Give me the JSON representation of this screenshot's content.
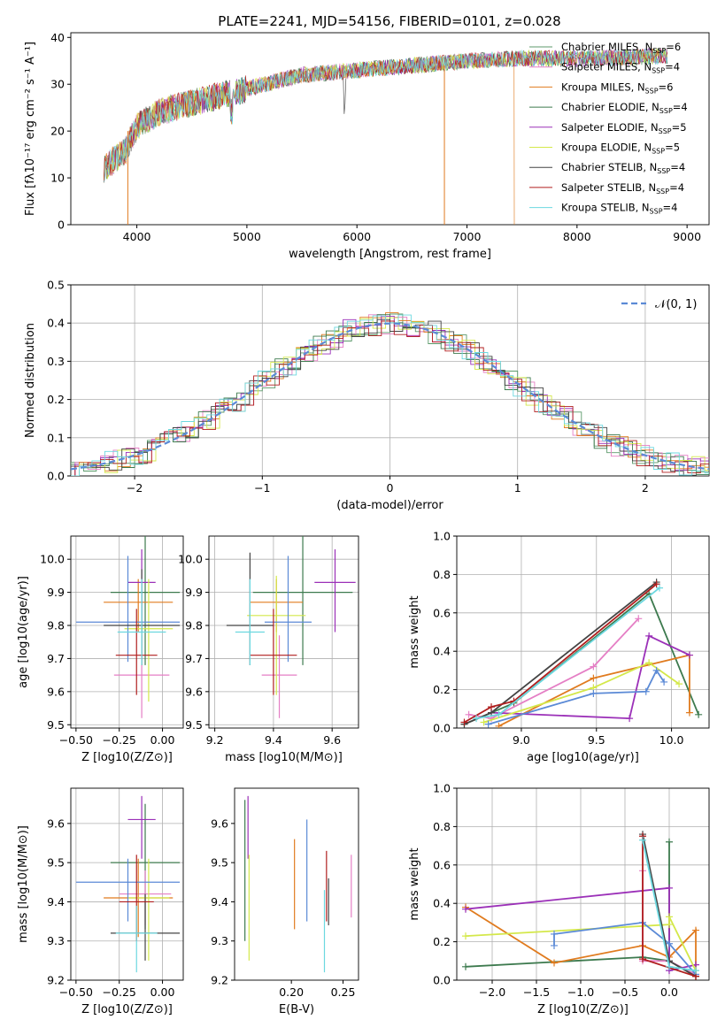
{
  "figure_title": "PLATE=2241, MJD=54156, FIBERID=0101, z=0.028",
  "chart_data": [
    {
      "type": "line",
      "id": "spectrum",
      "xlabel": "wavelength [Angstrom, rest frame]",
      "ylabel": "Flux [fλ10⁻¹⁷ erg cm⁻² s⁻¹ A⁻¹]",
      "xlim": [
        3400,
        9200
      ],
      "ylim": [
        0,
        41
      ],
      "xticks": [
        4000,
        5000,
        6000,
        7000,
        8000,
        9000
      ],
      "yticks": [
        0,
        10,
        20,
        30,
        40
      ],
      "grid": false,
      "legend_position": "right",
      "series": [
        {
          "name": "Chabrier MILES, N",
          "sub": "SSP",
          "suffix": "=6",
          "color": "#5c9a6b"
        },
        {
          "name": "Salpeter MILES, N",
          "sub": "SSP",
          "suffix": "=4",
          "color": "#e57fc5"
        },
        {
          "name": "Kroupa MILES, N",
          "sub": "SSP",
          "suffix": "=6",
          "color": "#e07b1f"
        },
        {
          "name": "Chabrier ELODIE, N",
          "sub": "SSP",
          "suffix": "=4",
          "color": "#3d7a4e"
        },
        {
          "name": "Salpeter ELODIE, N",
          "sub": "SSP",
          "suffix": "=5",
          "color": "#9b30b8"
        },
        {
          "name": "Kroupa ELODIE, N",
          "sub": "SSP",
          "suffix": "=5",
          "color": "#d4e84a"
        },
        {
          "name": "Chabrier STELIB, N",
          "sub": "SSP",
          "suffix": "=4",
          "color": "#444444"
        },
        {
          "name": "Salpeter STELIB, N",
          "sub": "SSP",
          "suffix": "=4",
          "color": "#b01e1e"
        },
        {
          "name": "Kroupa STELIB, N",
          "sub": "SSP",
          "suffix": "=4",
          "color": "#6cd8e0"
        }
      ],
      "continuum": {
        "x": [
          3700,
          3900,
          4000,
          4200,
          4500,
          5000,
          5500,
          6000,
          6500,
          7000,
          7500,
          8000,
          8500,
          8800
        ],
        "y": [
          12,
          16,
          21,
          24,
          26,
          29,
          32,
          33,
          34,
          35,
          35.5,
          35.5,
          35.8,
          36
        ]
      }
    },
    {
      "type": "histogram",
      "id": "residuals",
      "xlabel": "(data-model)/error",
      "ylabel": "Normed distribution",
      "xlim": [
        -2.5,
        2.5
      ],
      "ylim": [
        0,
        0.5
      ],
      "xticks": [
        -2,
        -1,
        0,
        1,
        2
      ],
      "yticks": [
        0.0,
        0.1,
        0.2,
        0.3,
        0.4,
        0.5
      ],
      "grid": true,
      "legend_position": "upper right",
      "legend_label": "𝒩(0, 1)",
      "normal_curve_color": "#5b8ad6"
    },
    {
      "type": "scatter",
      "id": "age_vs_Z",
      "xlabel": "Z [log10(Z/Z⊙)]",
      "ylabel": "age  [log10(age/yr)]",
      "xlim": [
        -0.53,
        0.12
      ],
      "ylim": [
        9.49,
        10.07
      ],
      "xticks": [
        -0.5,
        -0.25,
        0.0
      ],
      "yticks": [
        9.5,
        9.6,
        9.7,
        9.8,
        9.9,
        10.0
      ],
      "grid": true,
      "points": [
        {
          "x": -0.1,
          "y": 9.9,
          "xerr": 0.2,
          "yerr": [
            0.22,
            0.17
          ],
          "c": "#3d7a4e"
        },
        {
          "x": -0.12,
          "y": 9.65,
          "xerr": 0.16,
          "yerr": [
            0.13,
            0.12
          ],
          "c": "#e57fc5"
        },
        {
          "x": -0.14,
          "y": 9.87,
          "xerr": 0.2,
          "yerr": [
            0.09,
            0.07
          ],
          "c": "#e07b1f"
        },
        {
          "x": -0.12,
          "y": 9.93,
          "xerr": 0.08,
          "yerr": [
            0.15,
            0.1
          ],
          "c": "#9b30b8"
        },
        {
          "x": -0.08,
          "y": 9.79,
          "xerr": 0.14,
          "yerr": [
            0.22,
            0.15
          ],
          "c": "#d4e84a"
        },
        {
          "x": -0.2,
          "y": 9.81,
          "xerr": 0.3,
          "yerr": [
            0.12,
            0.2
          ],
          "c": "#5b8ad6"
        },
        {
          "x": -0.12,
          "y": 9.8,
          "xerr": 0.22,
          "yerr": [
            0.12,
            0.17
          ],
          "c": "#444444"
        },
        {
          "x": -0.15,
          "y": 9.71,
          "xerr": 0.12,
          "yerr": [
            0.12,
            0.14
          ],
          "c": "#b01e1e"
        },
        {
          "x": -0.12,
          "y": 9.78,
          "xerr": 0.14,
          "yerr": [
            0.1,
            0.16
          ],
          "c": "#6cd8e0"
        }
      ]
    },
    {
      "type": "scatter",
      "id": "age_vs_mass",
      "xlabel": "mass [log10(M/M⊙)]",
      "ylabel": "",
      "xlim": [
        9.18,
        9.69
      ],
      "ylim": [
        9.49,
        10.07
      ],
      "xticks": [
        9.2,
        9.4,
        9.6
      ],
      "yticks": [
        9.5,
        9.6,
        9.7,
        9.8,
        9.9,
        10.0
      ],
      "grid": true,
      "points": [
        {
          "x": 9.5,
          "y": 9.9,
          "xerr": 0.17,
          "yerr": [
            0.22,
            0.17
          ],
          "c": "#3d7a4e"
        },
        {
          "x": 9.42,
          "y": 9.65,
          "xerr": 0.06,
          "yerr": [
            0.13,
            0.12
          ],
          "c": "#e57fc5"
        },
        {
          "x": 9.41,
          "y": 9.87,
          "xerr": 0.09,
          "yerr": [
            0.09,
            0.07
          ],
          "c": "#e07b1f"
        },
        {
          "x": 9.61,
          "y": 9.93,
          "xerr": 0.07,
          "yerr": [
            0.15,
            0.1
          ],
          "c": "#9b30b8"
        },
        {
          "x": 9.41,
          "y": 9.83,
          "xerr": 0.1,
          "yerr": [
            0.24,
            0.12
          ],
          "c": "#d4e84a"
        },
        {
          "x": 9.45,
          "y": 9.81,
          "xerr": 0.08,
          "yerr": [
            0.12,
            0.2
          ],
          "c": "#5b8ad6"
        },
        {
          "x": 9.32,
          "y": 9.8,
          "xerr": 0.08,
          "yerr": [
            0.12,
            0.22
          ],
          "c": "#444444"
        },
        {
          "x": 9.4,
          "y": 9.71,
          "xerr": 0.08,
          "yerr": [
            0.12,
            0.14
          ],
          "c": "#b01e1e"
        },
        {
          "x": 9.32,
          "y": 9.78,
          "xerr": 0.05,
          "yerr": [
            0.1,
            0.16
          ],
          "c": "#6cd8e0"
        }
      ]
    },
    {
      "type": "line",
      "id": "mass_weight_vs_age",
      "xlabel": "age  [log10(age/yr)]",
      "ylabel": "mass weight",
      "xlim": [
        8.57,
        10.25
      ],
      "ylim": [
        0,
        1
      ],
      "xticks": [
        9.0,
        9.5,
        10.0
      ],
      "yticks": [
        0.0,
        0.2,
        0.4,
        0.6,
        0.8,
        1.0
      ],
      "grid": true,
      "series": [
        {
          "c": "#3d7a4e",
          "pts": [
            [
              8.62,
              0.02
            ],
            [
              8.95,
              0.13
            ],
            [
              9.85,
              0.7
            ],
            [
              10.18,
              0.07
            ]
          ]
        },
        {
          "c": "#e57fc5",
          "pts": [
            [
              8.65,
              0.07
            ],
            [
              8.8,
              0.05
            ],
            [
              9.48,
              0.32
            ],
            [
              9.78,
              0.57
            ]
          ]
        },
        {
          "c": "#e07b1f",
          "pts": [
            [
              8.85,
              0.01
            ],
            [
              9.48,
              0.26
            ],
            [
              10.12,
              0.38
            ],
            [
              10.12,
              0.08
            ]
          ]
        },
        {
          "c": "#9b30b8",
          "pts": [
            [
              8.8,
              0.08
            ],
            [
              9.72,
              0.05
            ],
            [
              9.85,
              0.48
            ],
            [
              10.12,
              0.38
            ]
          ]
        },
        {
          "c": "#d4e84a",
          "pts": [
            [
              8.75,
              0.03
            ],
            [
              9.48,
              0.21
            ],
            [
              9.85,
              0.34
            ],
            [
              10.05,
              0.23
            ]
          ]
        },
        {
          "c": "#5b8ad6",
          "pts": [
            [
              8.78,
              0.02
            ],
            [
              9.48,
              0.18
            ],
            [
              9.83,
              0.19
            ],
            [
              9.9,
              0.3
            ],
            [
              9.95,
              0.24
            ]
          ]
        },
        {
          "c": "#444444",
          "pts": [
            [
              8.62,
              0.02
            ],
            [
              8.8,
              0.08
            ],
            [
              9.9,
              0.76
            ]
          ]
        },
        {
          "c": "#b01e1e",
          "pts": [
            [
              8.62,
              0.03
            ],
            [
              8.8,
              0.11
            ],
            [
              8.95,
              0.14
            ],
            [
              9.9,
              0.75
            ]
          ]
        },
        {
          "c": "#6cd8e0",
          "pts": [
            [
              8.7,
              0.05
            ],
            [
              8.85,
              0.07
            ],
            [
              9.92,
              0.73
            ]
          ]
        }
      ]
    },
    {
      "type": "scatter",
      "id": "mass_vs_Z",
      "xlabel": "Z [log10(Z/Z⊙)]",
      "ylabel": "mass [log10(M/M⊙)]",
      "xlim": [
        -0.53,
        0.12
      ],
      "ylim": [
        9.2,
        9.69
      ],
      "xticks": [
        -0.5,
        -0.25,
        0.0
      ],
      "yticks": [
        9.2,
        9.3,
        9.4,
        9.5,
        9.6
      ],
      "grid": true,
      "points": [
        {
          "x": -0.1,
          "y": 9.5,
          "xerr": 0.2,
          "yerr": [
            0.17,
            0.15
          ],
          "c": "#3d7a4e"
        },
        {
          "x": -0.1,
          "y": 9.42,
          "xerr": 0.15,
          "yerr": [
            0.08,
            0.06
          ],
          "c": "#e57fc5"
        },
        {
          "x": -0.14,
          "y": 9.41,
          "xerr": 0.2,
          "yerr": [
            0.1,
            0.1
          ],
          "c": "#e07b1f"
        },
        {
          "x": -0.12,
          "y": 9.61,
          "xerr": 0.08,
          "yerr": [
            0.1,
            0.06
          ],
          "c": "#9b30b8"
        },
        {
          "x": -0.08,
          "y": 9.41,
          "xerr": 0.12,
          "yerr": [
            0.16,
            0.1
          ],
          "c": "#d4e84a"
        },
        {
          "x": -0.2,
          "y": 9.45,
          "xerr": 0.3,
          "yerr": [
            0.1,
            0.06
          ],
          "c": "#5b8ad6"
        },
        {
          "x": -0.1,
          "y": 9.32,
          "xerr": 0.2,
          "yerr": [
            0.07,
            0.1
          ],
          "c": "#444444"
        },
        {
          "x": -0.15,
          "y": 9.4,
          "xerr": 0.1,
          "yerr": [
            0.1,
            0.12
          ],
          "c": "#b01e1e"
        },
        {
          "x": -0.15,
          "y": 9.32,
          "xerr": 0.12,
          "yerr": [
            0.1,
            0.07
          ],
          "c": "#6cd8e0"
        }
      ]
    },
    {
      "type": "scatter",
      "id": "mass_vs_EBV",
      "xlabel": "E(B-V)",
      "ylabel": "",
      "xlim": [
        0.145,
        0.265
      ],
      "ylim": [
        9.2,
        9.69
      ],
      "xticks": [
        0.2,
        0.25
      ],
      "yticks": [
        9.2,
        9.3,
        9.4,
        9.5,
        9.6
      ],
      "grid": false,
      "points": [
        {
          "x": 0.155,
          "y": 9.48,
          "yerr": [
            0.18,
            0.18
          ],
          "c": "#3d7a4e"
        },
        {
          "x": 0.258,
          "y": 9.44,
          "yerr": [
            0.08,
            0.08
          ],
          "c": "#e57fc5"
        },
        {
          "x": 0.203,
          "y": 9.45,
          "yerr": [
            0.12,
            0.11
          ],
          "c": "#e07b1f"
        },
        {
          "x": 0.158,
          "y": 9.59,
          "yerr": [
            0.08,
            0.08
          ],
          "c": "#9b30b8"
        },
        {
          "x": 0.159,
          "y": 9.39,
          "yerr": [
            0.14,
            0.13
          ],
          "c": "#d4e84a"
        },
        {
          "x": 0.215,
          "y": 9.48,
          "yerr": [
            0.13,
            0.13
          ],
          "c": "#5b8ad6"
        },
        {
          "x": 0.236,
          "y": 9.41,
          "yerr": [
            0.07,
            0.05
          ],
          "c": "#444444"
        },
        {
          "x": 0.234,
          "y": 9.45,
          "yerr": [
            0.1,
            0.08
          ],
          "c": "#b01e1e"
        },
        {
          "x": 0.232,
          "y": 9.33,
          "yerr": [
            0.11,
            0.1
          ],
          "c": "#6cd8e0"
        }
      ]
    },
    {
      "type": "line",
      "id": "mass_weight_vs_Z",
      "xlabel": "Z [log10(Z/Z⊙)]",
      "ylabel": "mass weight",
      "xlim": [
        -2.4,
        0.45
      ],
      "ylim": [
        0,
        1
      ],
      "xticks": [
        -2.0,
        -1.5,
        -1.0,
        -0.5,
        0.0
      ],
      "yticks": [
        0.0,
        0.2,
        0.4,
        0.6,
        0.8,
        1.0
      ],
      "grid": true,
      "series": [
        {
          "c": "#3d7a4e",
          "pts": [
            [
              -2.3,
              0.07
            ],
            [
              -0.3,
              0.12
            ],
            [
              0.0,
              0.1
            ],
            [
              0.0,
              0.72
            ],
            [
              0.0,
              0.1
            ],
            [
              0.3,
              0.02
            ]
          ]
        },
        {
          "c": "#e57fc5",
          "pts": [
            [
              -0.3,
              0.57
            ],
            [
              -0.3,
              0.1
            ],
            [
              0.0,
              0.1
            ],
            [
              0.3,
              0.03
            ]
          ]
        },
        {
          "c": "#e07b1f",
          "pts": [
            [
              -2.3,
              0.38
            ],
            [
              -1.3,
              0.09
            ],
            [
              -0.3,
              0.18
            ],
            [
              0.0,
              0.12
            ],
            [
              0.3,
              0.26
            ],
            [
              0.3,
              0.02
            ]
          ]
        },
        {
          "c": "#9b30b8",
          "pts": [
            [
              -2.3,
              0.37
            ],
            [
              0.0,
              0.48
            ],
            [
              0.0,
              0.05
            ],
            [
              0.3,
              0.08
            ]
          ]
        },
        {
          "c": "#d4e84a",
          "pts": [
            [
              -2.3,
              0.23
            ],
            [
              0.0,
              0.29
            ],
            [
              0.0,
              0.33
            ],
            [
              0.3,
              0.05
            ]
          ]
        },
        {
          "c": "#5b8ad6",
          "pts": [
            [
              -1.3,
              0.18
            ],
            [
              -1.3,
              0.24
            ],
            [
              -0.3,
              0.3
            ],
            [
              0.0,
              0.19
            ],
            [
              0.3,
              0.03
            ]
          ]
        },
        {
          "c": "#444444",
          "pts": [
            [
              -0.3,
              0.76
            ],
            [
              0.0,
              0.1
            ],
            [
              0.3,
              0.02
            ]
          ]
        },
        {
          "c": "#b01e1e",
          "pts": [
            [
              -0.3,
              0.75
            ],
            [
              -0.3,
              0.11
            ],
            [
              0.3,
              0.02
            ]
          ]
        },
        {
          "c": "#6cd8e0",
          "pts": [
            [
              -0.3,
              0.73
            ],
            [
              0.0,
              0.07
            ],
            [
              0.3,
              0.05
            ]
          ]
        }
      ]
    }
  ]
}
